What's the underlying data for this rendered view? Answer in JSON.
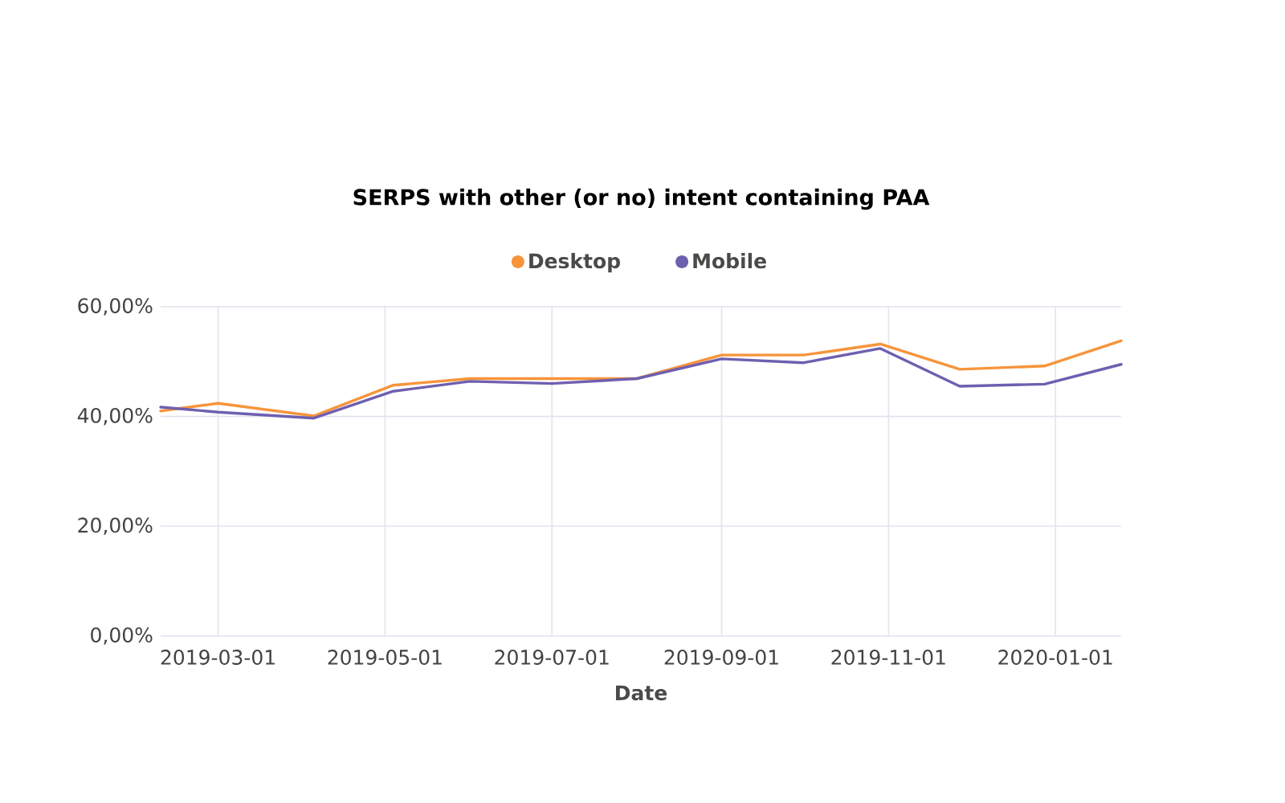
{
  "chart_data": {
    "type": "line",
    "title": "SERPS with other (or no) intent containing PAA",
    "xlabel": "Date",
    "x": [
      "2019-02-08",
      "2019-03-01",
      "2019-04-05",
      "2019-05-04",
      "2019-06-01",
      "2019-07-01",
      "2019-08-01",
      "2019-09-01",
      "2019-10-01",
      "2019-10-29",
      "2019-11-27",
      "2019-12-28",
      "2020-01-25"
    ],
    "series": [
      {
        "name": "Desktop",
        "color": "#f7943a",
        "values": [
          41.0,
          42.4,
          40.1,
          45.7,
          46.9,
          46.9,
          46.9,
          51.2,
          51.2,
          53.2,
          48.6,
          49.2,
          53.8
        ]
      },
      {
        "name": "Mobile",
        "color": "#6e5fb0",
        "values": [
          41.7,
          40.8,
          39.7,
          44.6,
          46.4,
          46.0,
          46.9,
          50.5,
          49.8,
          52.4,
          45.5,
          45.9,
          49.5
        ]
      }
    ],
    "xlim": [
      "2019-02-08",
      "2020-01-25"
    ],
    "xticks": [
      "2019-03-01",
      "2019-05-01",
      "2019-07-01",
      "2019-09-01",
      "2019-11-01",
      "2020-01-01"
    ],
    "ylim": [
      0,
      60
    ],
    "yticks": [
      {
        "value": 0,
        "label": "0,00%"
      },
      {
        "value": 20,
        "label": "20,00%"
      },
      {
        "value": 40,
        "label": "40,00%"
      },
      {
        "value": 60,
        "label": "60,00%"
      }
    ],
    "grid": true,
    "legend": "top",
    "line_style": "solid"
  }
}
